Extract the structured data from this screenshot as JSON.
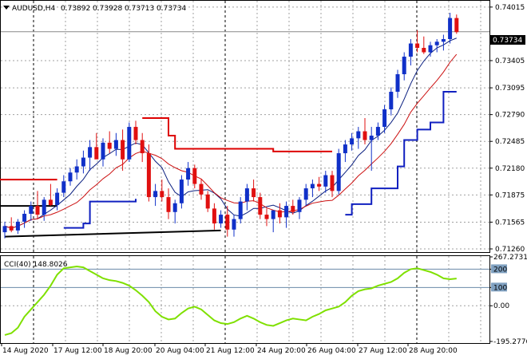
{
  "header": {
    "symbol": "AUDUSD,H4",
    "open": "0.73892",
    "high": "0.73928",
    "low": "0.73713",
    "close": "0.73734"
  },
  "indicator": {
    "label": "CCI(40) 148.8026",
    "scale_labels": [
      "267.2731",
      "200",
      "100",
      "0.00",
      "-195.2776"
    ]
  },
  "price_scale": [
    "0.74015",
    "0.73405",
    "0.73095",
    "0.72790",
    "0.72485",
    "0.72180",
    "0.71875",
    "0.71565",
    "0.71260"
  ],
  "current_price": "0.73734",
  "time_labels": [
    "14 Aug 2020",
    "17 Aug 12:00",
    "18 Aug 20:00",
    "20 Aug 04:00",
    "21 Aug 12:00",
    "24 Aug 20:00",
    "26 Aug 04:00",
    "27 Aug 12:00",
    "28 Aug 20:00"
  ],
  "colors": {
    "bull": "#1030c8",
    "bear": "#e01010",
    "ma_fast": "#0a1f80",
    "ma_slow": "#cc1111",
    "channel_red": "#dd0000",
    "channel_blue": "#1020c0",
    "cci": "#7fe000",
    "grid": "#a0a0a0"
  },
  "chart_data": {
    "type": "candlestick",
    "symbol": "AUDUSD",
    "timeframe": "H4",
    "ylim": [
      0.7126,
      0.7405
    ],
    "candles": [
      [
        0.7145,
        0.7157,
        0.7138,
        0.7152
      ],
      [
        0.7152,
        0.7162,
        0.7145,
        0.7147
      ],
      [
        0.7147,
        0.716,
        0.7143,
        0.7157
      ],
      [
        0.7157,
        0.717,
        0.715,
        0.7166
      ],
      [
        0.7166,
        0.718,
        0.7158,
        0.7175
      ],
      [
        0.7175,
        0.7192,
        0.716,
        0.7165
      ],
      [
        0.7165,
        0.7185,
        0.7158,
        0.7182
      ],
      [
        0.7182,
        0.72,
        0.7175,
        0.7176
      ],
      [
        0.7176,
        0.7195,
        0.717,
        0.719
      ],
      [
        0.719,
        0.721,
        0.7185,
        0.7203
      ],
      [
        0.7203,
        0.7218,
        0.7198,
        0.7213
      ],
      [
        0.7213,
        0.7228,
        0.7205,
        0.722
      ],
      [
        0.722,
        0.7238,
        0.7212,
        0.723
      ],
      [
        0.723,
        0.725,
        0.7215,
        0.7242
      ],
      [
        0.7242,
        0.7258,
        0.723,
        0.7228
      ],
      [
        0.7228,
        0.7252,
        0.722,
        0.7247
      ],
      [
        0.7247,
        0.726,
        0.7235,
        0.724
      ],
      [
        0.724,
        0.7258,
        0.7232,
        0.725
      ],
      [
        0.725,
        0.7262,
        0.7215,
        0.7228
      ],
      [
        0.7228,
        0.727,
        0.7225,
        0.7265
      ],
      [
        0.7265,
        0.7272,
        0.7245,
        0.725
      ],
      [
        0.725,
        0.7258,
        0.7225,
        0.7235
      ],
      [
        0.7235,
        0.7245,
        0.718,
        0.7185
      ],
      [
        0.7185,
        0.72,
        0.7175,
        0.7192
      ],
      [
        0.7192,
        0.7205,
        0.718,
        0.7185
      ],
      [
        0.7185,
        0.7195,
        0.716,
        0.7168
      ],
      [
        0.7168,
        0.7182,
        0.7155,
        0.7178
      ],
      [
        0.7178,
        0.721,
        0.7172,
        0.7205
      ],
      [
        0.7205,
        0.7225,
        0.7198,
        0.7218
      ],
      [
        0.7218,
        0.7222,
        0.7195,
        0.72
      ],
      [
        0.72,
        0.7206,
        0.7182,
        0.7188
      ],
      [
        0.7188,
        0.7192,
        0.7168,
        0.7172
      ],
      [
        0.7172,
        0.7178,
        0.7148,
        0.7155
      ],
      [
        0.7155,
        0.717,
        0.715,
        0.7165
      ],
      [
        0.7165,
        0.7175,
        0.714,
        0.7148
      ],
      [
        0.7148,
        0.7165,
        0.714,
        0.716
      ],
      [
        0.716,
        0.7185,
        0.7155,
        0.718
      ],
      [
        0.718,
        0.72,
        0.717,
        0.7195
      ],
      [
        0.7195,
        0.7205,
        0.718,
        0.7185
      ],
      [
        0.7185,
        0.719,
        0.716,
        0.7165
      ],
      [
        0.7165,
        0.7172,
        0.7152,
        0.716
      ],
      [
        0.716,
        0.717,
        0.7145,
        0.717
      ],
      [
        0.717,
        0.7178,
        0.7155,
        0.7162
      ],
      [
        0.7162,
        0.718,
        0.715,
        0.7175
      ],
      [
        0.7175,
        0.7182,
        0.7165,
        0.7168
      ],
      [
        0.7168,
        0.7185,
        0.716,
        0.7182
      ],
      [
        0.7182,
        0.72,
        0.7175,
        0.7195
      ],
      [
        0.7195,
        0.7205,
        0.7185,
        0.72
      ],
      [
        0.72,
        0.7208,
        0.7192,
        0.7197
      ],
      [
        0.7197,
        0.7215,
        0.719,
        0.721
      ],
      [
        0.721,
        0.7215,
        0.7185,
        0.7192
      ],
      [
        0.7192,
        0.724,
        0.7188,
        0.7235
      ],
      [
        0.7235,
        0.725,
        0.7225,
        0.7245
      ],
      [
        0.7245,
        0.7258,
        0.7238,
        0.7252
      ],
      [
        0.7252,
        0.7265,
        0.724,
        0.726
      ],
      [
        0.726,
        0.7275,
        0.7245,
        0.725
      ],
      [
        0.725,
        0.7265,
        0.7215,
        0.7255
      ],
      [
        0.7255,
        0.727,
        0.725,
        0.7265
      ],
      [
        0.7265,
        0.729,
        0.7258,
        0.7285
      ],
      [
        0.7285,
        0.731,
        0.7278,
        0.7305
      ],
      [
        0.7305,
        0.733,
        0.7298,
        0.7325
      ],
      [
        0.7325,
        0.735,
        0.7318,
        0.7345
      ],
      [
        0.7345,
        0.7365,
        0.7335,
        0.736
      ],
      [
        0.736,
        0.7375,
        0.735,
        0.7355
      ],
      [
        0.7355,
        0.7368,
        0.7348,
        0.735
      ],
      [
        0.735,
        0.7362,
        0.7345,
        0.7358
      ],
      [
        0.7358,
        0.7365,
        0.735,
        0.7362
      ],
      [
        0.7362,
        0.737,
        0.7352,
        0.7365
      ],
      [
        0.7365,
        0.7395,
        0.736,
        0.7389
      ],
      [
        0.7389,
        0.7393,
        0.7371,
        0.7373
      ]
    ],
    "cci_ylim": [
      -195.2776,
      267.2731
    ],
    "cci_levels": [
      200,
      100,
      0
    ],
    "cci": [
      -160,
      -150,
      -120,
      -60,
      -20,
      20,
      60,
      110,
      170,
      205,
      210,
      215,
      210,
      190,
      170,
      150,
      140,
      135,
      125,
      110,
      85,
      55,
      20,
      -30,
      -60,
      -75,
      -70,
      -40,
      -15,
      -5,
      -20,
      -50,
      -80,
      -95,
      -100,
      -90,
      -70,
      -55,
      -70,
      -90,
      -105,
      -110,
      -95,
      -80,
      -70,
      -75,
      -80,
      -60,
      -45,
      -25,
      -15,
      -5,
      20,
      55,
      80,
      90,
      95,
      110,
      120,
      130,
      150,
      180,
      200,
      205,
      195,
      185,
      170,
      150,
      145,
      148.8
    ]
  }
}
